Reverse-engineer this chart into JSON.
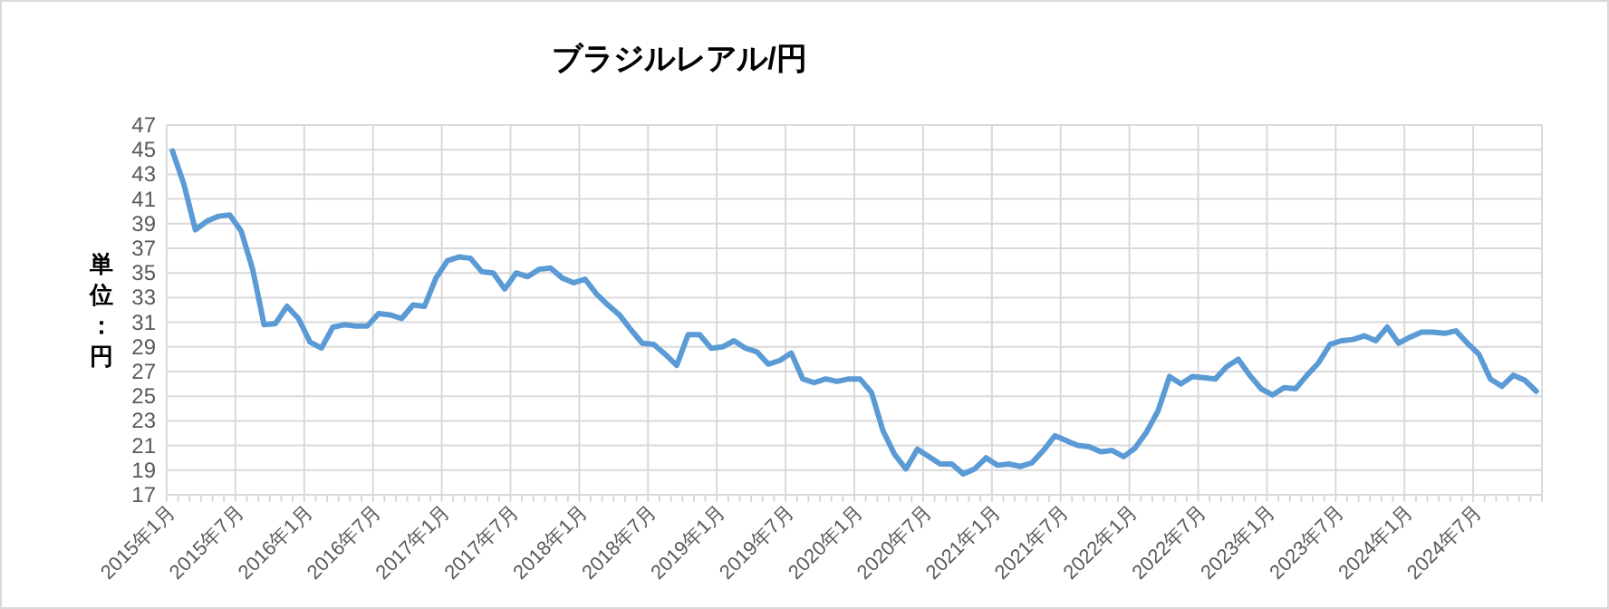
{
  "chart_data": {
    "type": "line",
    "title": "ブラジルレアル/円",
    "ylabel": "単位：円",
    "categories": [
      "2015年1月",
      null,
      null,
      null,
      null,
      null,
      "2015年7月",
      null,
      null,
      null,
      null,
      null,
      "2016年1月",
      null,
      null,
      null,
      null,
      null,
      "2016年7月",
      null,
      null,
      null,
      null,
      null,
      "2017年1月",
      null,
      null,
      null,
      null,
      null,
      "2017年7月",
      null,
      null,
      null,
      null,
      null,
      "2018年1月",
      null,
      null,
      null,
      null,
      null,
      "2018年7月",
      null,
      null,
      null,
      null,
      null,
      "2019年1月",
      null,
      null,
      null,
      null,
      null,
      "2019年7月",
      null,
      null,
      null,
      null,
      null,
      "2020年1月",
      null,
      null,
      null,
      null,
      null,
      "2020年7月",
      null,
      null,
      null,
      null,
      null,
      "2021年1月",
      null,
      null,
      null,
      null,
      null,
      "2021年7月",
      null,
      null,
      null,
      null,
      null,
      "2022年1月",
      null,
      null,
      null,
      null,
      null,
      "2022年7月",
      null,
      null,
      null,
      null,
      null,
      "2023年1月",
      null,
      null,
      null,
      null,
      null,
      "2023年7月",
      null,
      null,
      null,
      null,
      null,
      "2024年1月",
      null,
      null,
      null,
      null,
      null,
      "2024年7月",
      null,
      null,
      null,
      null,
      null
    ],
    "series": [
      {
        "color": "#5b9bd5",
        "values": [
          44.9,
          42.2,
          38.5,
          39.2,
          39.6,
          39.7,
          38.4,
          35.3,
          30.8,
          30.9,
          32.3,
          31.3,
          29.4,
          28.9,
          30.6,
          30.8,
          30.7,
          30.7,
          31.7,
          31.6,
          31.3,
          32.4,
          32.3,
          34.6,
          36.0,
          36.3,
          36.2,
          35.1,
          35.0,
          33.7,
          35.0,
          34.7,
          35.3,
          35.4,
          34.6,
          34.2,
          34.5,
          33.3,
          32.4,
          31.6,
          30.4,
          29.3,
          29.2,
          28.4,
          27.5,
          30.0,
          30.0,
          28.9,
          29.0,
          29.5,
          28.9,
          28.6,
          27.6,
          27.9,
          28.5,
          26.4,
          26.1,
          26.4,
          26.2,
          26.4,
          26.4,
          25.3,
          22.2,
          20.3,
          19.1,
          20.7,
          20.1,
          19.5,
          19.5,
          18.7,
          19.1,
          20.0,
          19.4,
          19.5,
          19.3,
          19.6,
          20.6,
          21.8,
          21.4,
          21.0,
          20.9,
          20.5,
          20.6,
          20.1,
          20.8,
          22.1,
          23.8,
          26.6,
          26.0,
          26.6,
          26.5,
          26.4,
          27.4,
          28.0,
          26.7,
          25.6,
          25.1,
          25.7,
          25.6,
          26.7,
          27.7,
          29.2,
          29.5,
          29.6,
          29.9,
          29.5,
          30.6,
          29.3,
          29.8,
          30.2,
          30.2,
          30.1,
          30.3,
          29.3,
          28.4,
          26.4,
          25.8,
          26.7,
          26.3,
          25.4
        ]
      }
    ],
    "ylim": [
      17,
      47
    ],
    "yticks": [
      17,
      19,
      21,
      23,
      25,
      27,
      29,
      31,
      33,
      35,
      37,
      39,
      41,
      43,
      45,
      47
    ],
    "grid": true
  }
}
